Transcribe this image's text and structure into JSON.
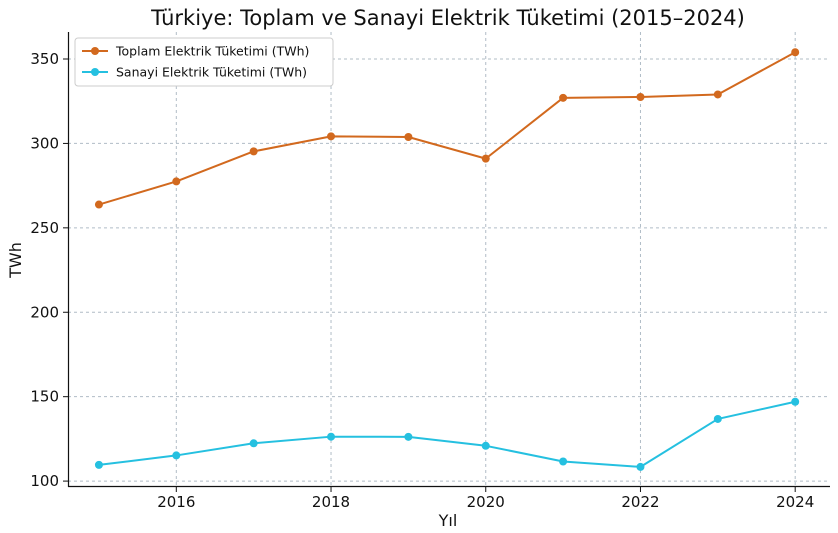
{
  "chart_data": {
    "type": "line",
    "title": "Türkiye: Toplam ve Sanayi Elektrik Tüketimi (2015–2024)",
    "xlabel": "Yıl",
    "ylabel": "TWh",
    "x": [
      2015,
      2016,
      2017,
      2018,
      2019,
      2020,
      2021,
      2022,
      2023,
      2024
    ],
    "xticks": [
      2016,
      2018,
      2020,
      2022,
      2024
    ],
    "yticks": [
      100,
      150,
      200,
      250,
      300,
      350
    ],
    "xlim": [
      2014.6,
      2024.45
    ],
    "ylim": [
      96.5,
      366
    ],
    "grid": true,
    "legend_position": "top-left",
    "series": [
      {
        "name": "Toplam Elektrik Tüketimi (TWh)",
        "color": "#d2691e",
        "values": [
          263.8,
          277.5,
          295.3,
          304.2,
          303.8,
          291.0,
          327.0,
          327.5,
          329.0,
          354.0
        ]
      },
      {
        "name": "Sanayi Elektrik Tüketimi (TWh)",
        "color": "#25c0e0",
        "values": [
          109.6,
          115.2,
          122.4,
          126.3,
          126.2,
          120.9,
          111.6,
          108.4,
          136.8,
          147.0
        ]
      }
    ]
  }
}
